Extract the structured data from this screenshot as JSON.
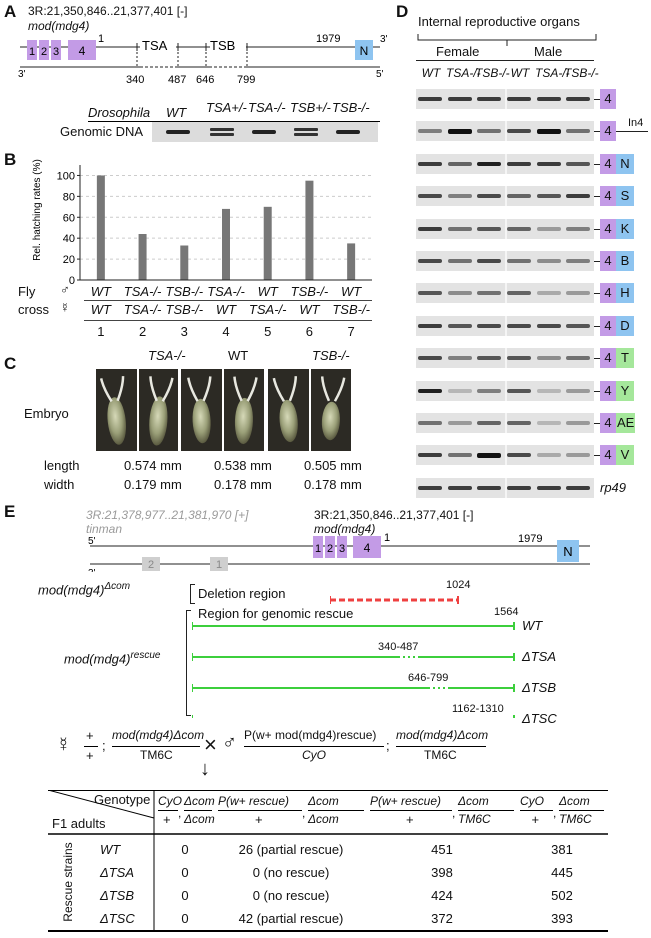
{
  "panels": {
    "A": "A",
    "B": "B",
    "C": "C",
    "D": "D",
    "E": "E"
  },
  "colors": {
    "exon_purple": "#c39be6",
    "exon_blue": "#8ec4f0",
    "exon_green": "#a5e79b",
    "grey_exon": "#cfcfcf",
    "bar": "#777777",
    "deletion": "#ef4040",
    "rescue": "#3ccf3c"
  },
  "A": {
    "locus": "3R:21,350,846..21,377,401 [-]",
    "gene": "mod(mdg4)",
    "exons": [
      "1",
      "2",
      "3",
      "4"
    ],
    "tss": "1",
    "last": "1979",
    "n_exon": "N",
    "end3": "3'",
    "end5": "5'",
    "tsa": "TSA",
    "tsb": "TSB",
    "coords": [
      "340",
      "487",
      "646",
      "799"
    ],
    "drosophila": "Drosophila",
    "genomic": "Genomic DNA",
    "genotypes": [
      "WT",
      "TSA+/-",
      "TSA-/-",
      "TSB+/-",
      "TSB-/-"
    ]
  },
  "B": {
    "ylabel": "Rel. hatching rates (%)",
    "fly": "Fly",
    "cross": "cross",
    "male_sym": "♂",
    "female_sym": "☿",
    "male_row": [
      "WT",
      "TSA-/-",
      "TSB-/-",
      "TSA-/-",
      "WT",
      "TSB-/-",
      "WT"
    ],
    "female_row": [
      "WT",
      "TSA-/-",
      "TSB-/-",
      "WT",
      "TSA-/-",
      "WT",
      "TSB-/-"
    ],
    "numbers": [
      "1",
      "2",
      "3",
      "4",
      "5",
      "6",
      "7"
    ]
  },
  "chart_data": {
    "type": "bar",
    "categories": [
      "1",
      "2",
      "3",
      "4",
      "5",
      "6",
      "7"
    ],
    "values": [
      100,
      44,
      33,
      68,
      70,
      95,
      35
    ],
    "title": "",
    "xlabel": "",
    "ylabel": "Rel. hatching rates (%)",
    "yticks": [
      "0",
      "20",
      "40",
      "60",
      "80",
      "100"
    ],
    "ylim": [
      0,
      110
    ],
    "grid": true
  },
  "C": {
    "embryo": "Embryo",
    "headers": [
      "TSA-/-",
      "WT",
      "TSB-/-"
    ],
    "length_label": "length",
    "width_label": "width",
    "lengths": [
      "0.574 mm",
      "0.538 mm",
      "0.505 mm"
    ],
    "widths": [
      "0.179 mm",
      "0.178 mm",
      "0.178 mm"
    ]
  },
  "D": {
    "title": "Internal reproductive organs",
    "female": "Female",
    "male": "Male",
    "cols": [
      "WT",
      "TSA-/-",
      "TSB-/-",
      "WT",
      "TSA-/-",
      "TSB-/-"
    ],
    "rows": [
      {
        "a": "4",
        "b": "",
        "c": ""
      },
      {
        "a": "4",
        "b": "In4",
        "c": ""
      },
      {
        "a": "4",
        "b": "N",
        "c": "blue"
      },
      {
        "a": "4",
        "b": "S",
        "c": "blue"
      },
      {
        "a": "4",
        "b": "K",
        "c": "blue"
      },
      {
        "a": "4",
        "b": "B",
        "c": "blue"
      },
      {
        "a": "4",
        "b": "H",
        "c": "blue"
      },
      {
        "a": "4",
        "b": "D",
        "c": "blue"
      },
      {
        "a": "4",
        "b": "T",
        "c": "green"
      },
      {
        "a": "4",
        "b": "Y",
        "c": "green"
      },
      {
        "a": "4",
        "b": "AE",
        "c": "green"
      },
      {
        "a": "4",
        "b": "V",
        "c": "green"
      }
    ],
    "control": "rp49"
  },
  "E": {
    "tinman_locus": "3R:21,378,977..21,381,970 [+]",
    "tinman": "tinman",
    "locus": "3R:21,350,846..21,377,401 [-]",
    "gene": "mod(mdg4)",
    "grey_exons": [
      "2",
      "1"
    ],
    "exons": [
      "1",
      "2",
      "3",
      "4"
    ],
    "tss": "1",
    "last": "1979",
    "n_exon": "N",
    "end5": "5'",
    "end3": "3'",
    "delcom_base": "mod(mdg4)",
    "delcom_sup": "Δcom",
    "deletion": "Deletion region",
    "del_end": "1024",
    "rescue_base": "mod(mdg4)",
    "rescue_sup": "rescue",
    "rescue_region": "Region for genomic rescue",
    "rescue_end": "1564",
    "rescue_lines": [
      {
        "name": "WT",
        "gap": ""
      },
      {
        "name": "ΔTSA",
        "gap": "340-487"
      },
      {
        "name": "ΔTSB",
        "gap": "646-799"
      },
      {
        "name": "ΔTSC",
        "gap": "1162-1310"
      }
    ],
    "cross": {
      "female": "☿",
      "plus": "+",
      "num1": "mod(mdg4)Δcom",
      "den1": "TM6C",
      "times": "×",
      "male": "♂",
      "num2": "P(w+ mod(mdg4)rescue)",
      "den2": "CyO",
      "num3": "mod(mdg4)Δcom",
      "den3": "TM6C",
      "arrow": "↓"
    },
    "table": {
      "genotype": "Genotype",
      "f1": "F1 adults",
      "strains": "Rescue strains",
      "headers": [
        {
          "n1": "CyO",
          "d1": "+",
          "n2": "Δcom",
          "d2": "Δcom"
        },
        {
          "n1": "P(w+ rescue)",
          "d1": "+",
          "n2": "Δcom",
          "d2": "Δcom"
        },
        {
          "n1": "P(w+ rescue)",
          "d1": "+",
          "n2": "Δcom",
          "d2": "TM6C"
        },
        {
          "n1": "CyO",
          "d1": "+",
          "n2": "Δcom",
          "d2": "TM6C"
        }
      ],
      "rows": [
        {
          "name": "WT",
          "c1": "0",
          "c2": "26 (partial rescue)",
          "c3": "451",
          "c4": "381"
        },
        {
          "name": "ΔTSA",
          "c1": "0",
          "c2": "0 (no rescue)",
          "c3": "398",
          "c4": "445"
        },
        {
          "name": "ΔTSB",
          "c1": "0",
          "c2": "0 (no rescue)",
          "c3": "424",
          "c4": "502"
        },
        {
          "name": "ΔTSC",
          "c1": "0",
          "c2": "42 (partial rescue)",
          "c3": "372",
          "c4": "393"
        }
      ]
    }
  }
}
